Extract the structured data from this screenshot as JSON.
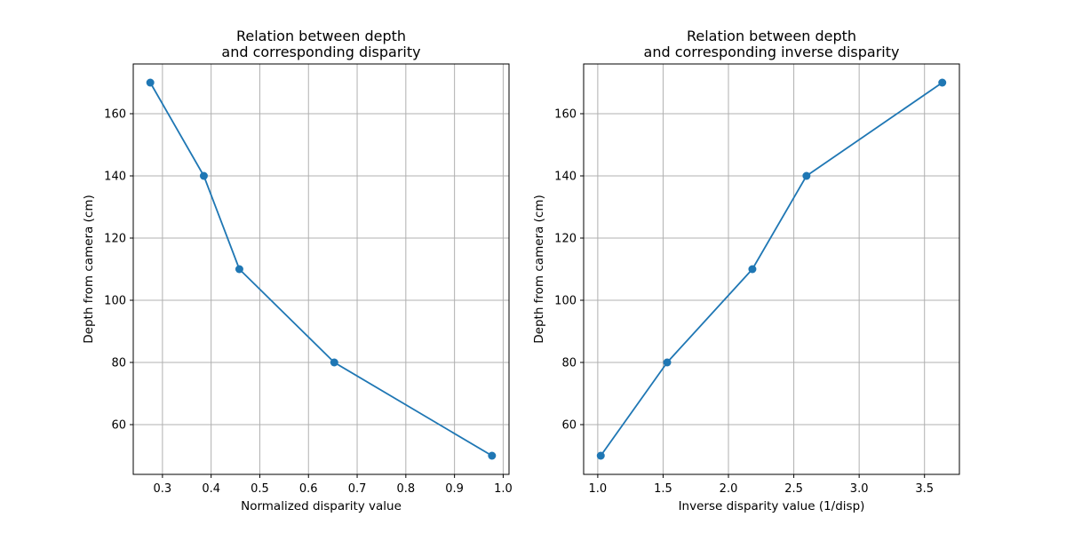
{
  "chart_data": [
    {
      "type": "line",
      "title_lines": [
        "Relation between depth",
        "and corresponding disparity"
      ],
      "xlabel": "Normalized disparity value",
      "ylabel": "Depth from camera (cm)",
      "x": [
        0.275,
        0.385,
        0.458,
        0.653,
        0.977
      ],
      "y": [
        170,
        140,
        110,
        80,
        50
      ],
      "xlim": [
        0.24,
        1.012
      ],
      "ylim": [
        44,
        176
      ],
      "xticks": [
        0.3,
        0.4,
        0.5,
        0.6,
        0.7,
        0.8,
        0.9,
        1.0
      ],
      "xtick_labels": [
        "0.3",
        "0.4",
        "0.5",
        "0.6",
        "0.7",
        "0.8",
        "0.9",
        "1.0"
      ],
      "yticks": [
        60,
        80,
        100,
        120,
        140,
        160
      ],
      "ytick_labels": [
        "60",
        "80",
        "100",
        "120",
        "140",
        "160"
      ],
      "grid": true,
      "marker": "o",
      "color": "#1f77b4"
    },
    {
      "type": "line",
      "title_lines": [
        "Relation between depth",
        "and corresponding inverse disparity"
      ],
      "xlabel": "Inverse disparity value (1/disp)",
      "ylabel": "Depth from camera (cm)",
      "x": [
        1.023,
        1.531,
        2.183,
        2.597,
        3.636
      ],
      "y": [
        50,
        80,
        110,
        140,
        170
      ],
      "xlim": [
        0.892,
        3.767
      ],
      "ylim": [
        44,
        176
      ],
      "xticks": [
        1.0,
        1.5,
        2.0,
        2.5,
        3.0,
        3.5
      ],
      "xtick_labels": [
        "1.0",
        "1.5",
        "2.0",
        "2.5",
        "3.0",
        "3.5"
      ],
      "yticks": [
        60,
        80,
        100,
        120,
        140,
        160
      ],
      "ytick_labels": [
        "60",
        "80",
        "100",
        "120",
        "140",
        "160"
      ],
      "grid": true,
      "marker": "o",
      "color": "#1f77b4"
    }
  ]
}
